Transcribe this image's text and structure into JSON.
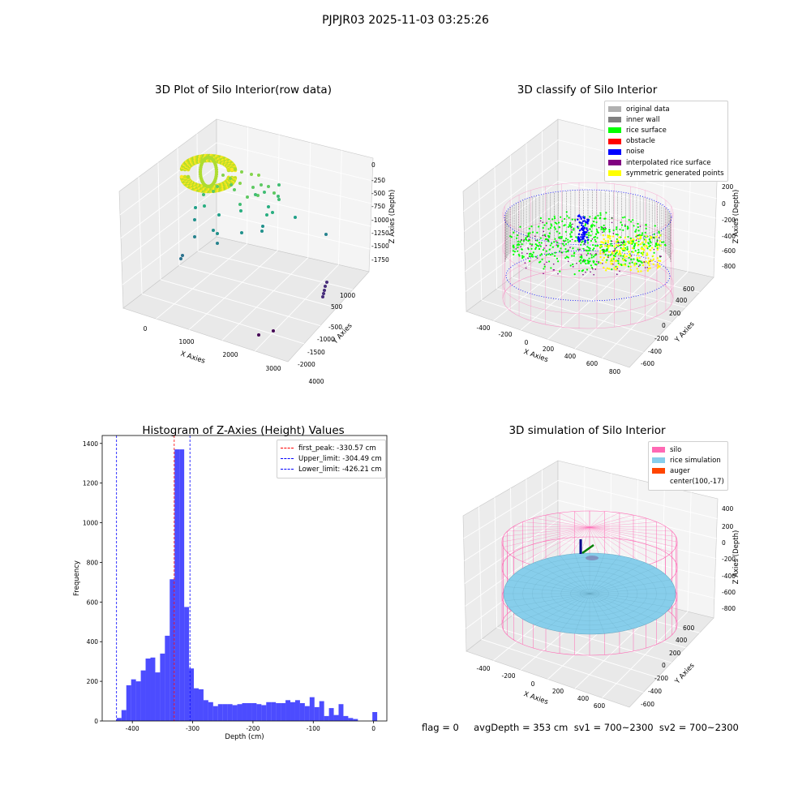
{
  "suptitle": "PJPJR03 2025-11-03 03:25:26",
  "footer": "flag = 0     avgDepth = 353 cm  sv1 = 700~2300  sv2 = 700~2300",
  "colors": {
    "original": "#b0b0b0",
    "inner_wall": "#808080",
    "rice_surface": "#00ff00",
    "obstacle": "#ff0000",
    "noise": "#0000ff",
    "interpolated": "#800080",
    "symmetric": "#ffff00",
    "silo": "#ff69b4",
    "rice_sim": "#87ceeb",
    "auger": "#ff4500",
    "hist_bar": "#0000ff"
  },
  "chart_data": [
    {
      "type": "scatter3d",
      "title": "3D Plot of Silo Interior(row data)",
      "xlabel": "X Axies",
      "ylabel": "Y Axies",
      "zlabel": "Z Axies (Depth)",
      "xticks": [
        "0",
        "1000",
        "2000",
        "3000",
        "4000"
      ],
      "yticks": [
        "-2000",
        "-1500",
        "-1000",
        "-500",
        "500",
        "1000"
      ],
      "zticks": [
        "0",
        "-250",
        "-500",
        "-750",
        "-1000",
        "-1250",
        "-1500",
        "-1750"
      ],
      "colormap": "viridis by depth"
    },
    {
      "type": "scatter3d",
      "title": "3D classify of Silo Interior",
      "xlabel": "X Axies",
      "ylabel": "Y Axies",
      "zlabel": "Z Axies (Depth)",
      "xticks": [
        "-400",
        "-200",
        "0",
        "200",
        "400",
        "600",
        "800"
      ],
      "yticks": [
        "-600",
        "-400",
        "-200",
        "0",
        "200",
        "400",
        "600"
      ],
      "zticks": [
        "200",
        "0",
        "-200",
        "-400",
        "-600",
        "-800"
      ],
      "legend": [
        "original data",
        "inner wall",
        "rice surface",
        "obstacle",
        "noise",
        "interpolated rice surface",
        "symmetric generated points"
      ],
      "legend_placement": "top-right"
    },
    {
      "type": "bar",
      "title": "Histogram of Z-Axies (Height) Values",
      "xlabel": "Depth (cm)",
      "ylabel": "Frequency",
      "xlim": [
        -450,
        22
      ],
      "ylim": [
        0,
        1440
      ],
      "xticks": [
        "-400",
        "-300",
        "-200",
        "-100",
        "0"
      ],
      "yticks": [
        "0",
        "200",
        "400",
        "600",
        "800",
        "1000",
        "1200",
        "1400"
      ],
      "bin_width": 8,
      "bins_start": [
        -426,
        -418,
        -410,
        -402,
        -394,
        -386,
        -378,
        -370,
        -362,
        -354,
        -346,
        -338,
        -330,
        -322,
        -314,
        -306,
        -298,
        -290,
        -282,
        -274,
        -266,
        -258,
        -250,
        -242,
        -234,
        -226,
        -218,
        -210,
        -202,
        -194,
        -186,
        -178,
        -170,
        -162,
        -154,
        -146,
        -138,
        -130,
        -122,
        -114,
        -106,
        -98,
        -90,
        -82,
        -74,
        -66,
        -58,
        -50,
        -42,
        -34,
        -26,
        -18,
        -10,
        -2
      ],
      "values": [
        15,
        55,
        180,
        210,
        200,
        255,
        315,
        320,
        245,
        340,
        430,
        715,
        1370,
        1370,
        575,
        265,
        165,
        160,
        105,
        95,
        75,
        85,
        85,
        85,
        80,
        85,
        90,
        90,
        90,
        85,
        80,
        95,
        95,
        90,
        90,
        105,
        95,
        105,
        90,
        75,
        120,
        70,
        100,
        25,
        65,
        30,
        85,
        25,
        15,
        10,
        0,
        0,
        0,
        45
      ],
      "vlines": [
        {
          "label": "first_peak: -330.57 cm",
          "x": -330.57,
          "color": "#ff0000"
        },
        {
          "label": "Upper_limit: -304.49 cm",
          "x": -304.49,
          "color": "#0000ff"
        },
        {
          "label": "Lower_limit: -426.21 cm",
          "x": -426.21,
          "color": "#0000ff"
        }
      ],
      "legend_placement": "top-right"
    },
    {
      "type": "surface3d",
      "title": "3D simulation of Silo Interior",
      "xlabel": "X Axies",
      "ylabel": "Y Axies",
      "zlabel": "Z Axies (Depth)",
      "xticks": [
        "-400",
        "-200",
        "0",
        "200",
        "400",
        "600"
      ],
      "yticks": [
        "-600",
        "-400",
        "-200",
        "0",
        "200",
        "400",
        "600"
      ],
      "zticks": [
        "400",
        "200",
        "0",
        "-200",
        "-400",
        "-600",
        "-800"
      ],
      "legend": [
        "silo",
        "rice simulation",
        "auger",
        "center(100,-17)"
      ],
      "legend_placement": "top-right"
    }
  ]
}
